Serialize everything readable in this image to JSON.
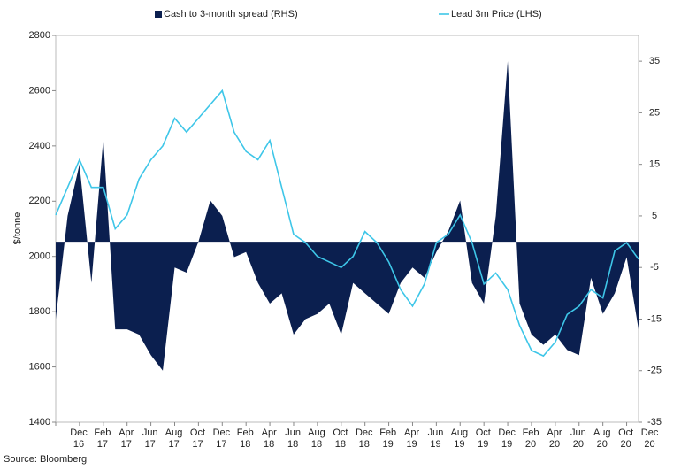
{
  "chart_data": {
    "type": "combo",
    "y_label": "$/tonne",
    "source": "Source: Bloomberg",
    "categories": [
      "Dec 16",
      null,
      "Feb 17",
      null,
      "Apr 17",
      null,
      "Jun 17",
      null,
      "Aug 17",
      null,
      "Oct 17",
      null,
      "Dec 17",
      null,
      "Feb 18",
      null,
      "Apr 18",
      null,
      "Jun 18",
      null,
      "Aug 18",
      null,
      "Oct 18",
      null,
      "Dec 18",
      null,
      "Feb 19",
      null,
      "Apr 19",
      null,
      "Jun 19",
      null,
      "Aug 19",
      null,
      "Oct 19",
      null,
      "Dec 19",
      null,
      "Feb 20",
      null,
      "Apr 20",
      null,
      "Jun 20",
      null,
      "Aug 20",
      null,
      "Oct 20",
      null,
      "Dec 20",
      null
    ],
    "ylim": [
      1400,
      2800
    ],
    "yticks": [
      1400,
      1600,
      1800,
      2000,
      2200,
      2400,
      2600,
      2800
    ],
    "y2lim": [
      -35,
      40
    ],
    "y2ticks": [
      -35,
      -25,
      -15,
      -5,
      5,
      15,
      25,
      35
    ],
    "legend": "top",
    "series": [
      {
        "name": "Cash to 3-month spread (RHS)",
        "type": "area",
        "axis": "y2",
        "color": "#0b1f4f",
        "values": [
          -15,
          5,
          15,
          -8,
          20,
          -17,
          -17,
          -18,
          -22,
          -25,
          -5,
          -6,
          0,
          8,
          5,
          -3,
          -2,
          -8,
          -12,
          -10,
          -18,
          -15,
          -14,
          -12,
          -18,
          -8,
          -10,
          -12,
          -14,
          -8,
          -5,
          -7,
          -2,
          2,
          8,
          -8,
          -12,
          5,
          35,
          -12,
          -18,
          -20,
          -18,
          -21,
          -22,
          -7,
          -14,
          -10,
          -3,
          -17
        ]
      },
      {
        "name": "Lead 3m Price (LHS)",
        "type": "line",
        "axis": "y",
        "color": "#3ec6e8",
        "values": [
          2150,
          2250,
          2350,
          2250,
          2250,
          2100,
          2150,
          2280,
          2350,
          2400,
          2500,
          2450,
          2500,
          2550,
          2600,
          2450,
          2380,
          2350,
          2420,
          2250,
          2080,
          2050,
          2000,
          1980,
          1960,
          2000,
          2090,
          2050,
          1980,
          1880,
          1820,
          1900,
          2050,
          2080,
          2150,
          2050,
          1900,
          1940,
          1880,
          1750,
          1660,
          1640,
          1690,
          1790,
          1820,
          1880,
          1850,
          2020,
          2050,
          1990
        ]
      }
    ]
  }
}
